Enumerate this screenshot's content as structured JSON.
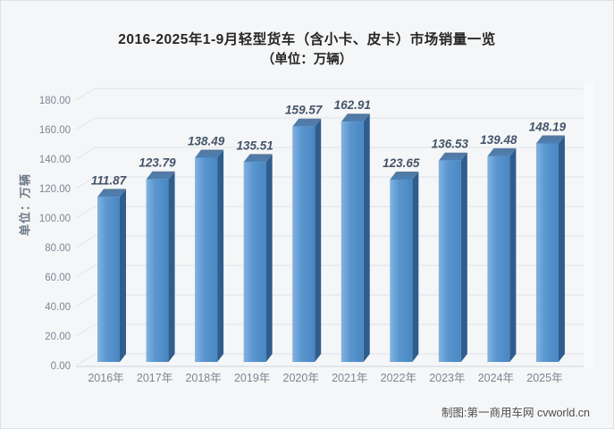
{
  "header": {
    "title": "2016-2025年1-9月轻型货车（含小卡、皮卡）市场销量一览",
    "subtitle": "（单位：万辆）"
  },
  "footer": {
    "credit": "制图:第一商用车网 cvworld.cn"
  },
  "chart_data": {
    "type": "bar",
    "title": "2016-2025年1-9月轻型货车（含小卡、皮卡）市场销量一览",
    "subtitle": "（单位：万辆）",
    "ylabel": "单位：万辆",
    "xlabel": "",
    "categories": [
      "2016年",
      "2017年",
      "2018年",
      "2019年",
      "2020年",
      "2021年",
      "2022年",
      "2023年",
      "2024年",
      "2025年"
    ],
    "values": [
      111.87,
      123.79,
      138.49,
      135.51,
      159.57,
      162.91,
      123.65,
      136.53,
      139.48,
      148.19
    ],
    "ylim": [
      0,
      180
    ],
    "ytick_step": 20,
    "ytick_labels": [
      "0.00",
      "20.00",
      "40.00",
      "60.00",
      "80.00",
      "100.00",
      "120.00",
      "140.00",
      "160.00",
      "180.00"
    ],
    "grid": true,
    "legend_position": "none",
    "bar_style": "3d-column",
    "colors": {
      "bar_front_light": "#82b3e1",
      "bar_front_mid": "#5a96ce",
      "bar_front_dark": "#4a86c2",
      "bar_side": "#2f5d8d",
      "bar_top": "#4b7fb3",
      "value_label": "#44546a",
      "axis_text": "#7b8794",
      "gridline": "#e3e7ed",
      "floor_line": "#d7dce3",
      "background": "#f5f6f7"
    }
  }
}
